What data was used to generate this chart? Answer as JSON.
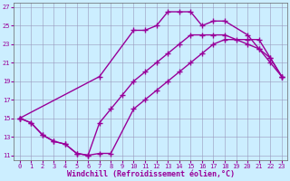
{
  "xlabel": "Windchill (Refroidissement éolien,°C)",
  "bg_color": "#cceeff",
  "line_color": "#990099",
  "marker": "+",
  "markersize": 4,
  "linewidth": 1.0,
  "xlim": [
    -0.5,
    23.5
  ],
  "ylim": [
    10.5,
    27.5
  ],
  "xticks": [
    0,
    1,
    2,
    3,
    4,
    5,
    6,
    7,
    8,
    9,
    10,
    11,
    12,
    13,
    14,
    15,
    16,
    17,
    18,
    19,
    20,
    21,
    22,
    23
  ],
  "yticks": [
    11,
    13,
    15,
    17,
    19,
    21,
    23,
    25,
    27
  ],
  "series": [
    {
      "x": [
        0,
        1,
        2,
        3,
        4,
        5,
        6,
        7,
        8,
        10,
        11,
        12,
        13,
        14,
        15,
        16,
        17,
        18,
        20,
        21,
        22,
        23
      ],
      "y": [
        15,
        14.5,
        13.2,
        12.5,
        12.2,
        11.2,
        11.0,
        11.2,
        11.2,
        16.0,
        17.0,
        18.0,
        19.0,
        20.0,
        21.0,
        22.0,
        23.0,
        23.5,
        23.5,
        23.5,
        21.5,
        19.5
      ]
    },
    {
      "x": [
        0,
        7,
        10,
        11,
        12,
        13,
        14,
        15,
        16,
        17,
        18,
        20,
        21,
        22,
        23
      ],
      "y": [
        15,
        19.5,
        24.5,
        24.5,
        25.0,
        26.5,
        26.5,
        26.5,
        25.0,
        25.5,
        25.5,
        24.0,
        22.5,
        21.0,
        19.5
      ]
    },
    {
      "x": [
        0,
        1,
        2,
        3,
        4,
        5,
        6,
        7,
        8,
        9,
        10,
        11,
        12,
        13,
        14,
        15,
        16,
        17,
        18,
        19,
        20,
        21,
        22,
        23
      ],
      "y": [
        15,
        14.5,
        13.2,
        12.5,
        12.2,
        11.2,
        11.0,
        14.5,
        16.0,
        17.5,
        19.0,
        20.0,
        21.0,
        22.0,
        23.0,
        24.0,
        24.0,
        24.0,
        24.0,
        23.5,
        23.0,
        22.5,
        21.5,
        19.5
      ]
    }
  ],
  "grid_color": "#9999bb",
  "tick_fontsize": 5,
  "label_fontsize": 6
}
